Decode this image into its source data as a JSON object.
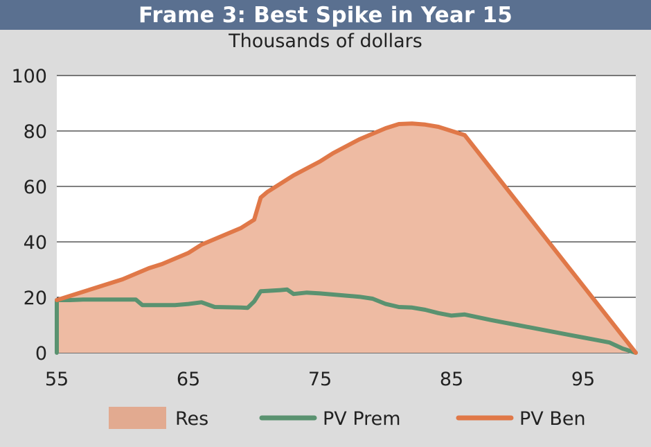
{
  "header": {
    "title": "Frame 3: Best Spike in Year 15",
    "subtitle": "Thousands of dollars"
  },
  "colors": {
    "title_bar": "#5a7090",
    "background": "#dcdcdc",
    "plot_bg": "#ffffff",
    "res_fill": "#eebba3",
    "res_legend": "#e2aa90",
    "pv_prem": "#5a9270",
    "pv_ben": "#e07848"
  },
  "chart_data": {
    "type": "area",
    "title": "Frame 3: Best Spike in Year 15",
    "subtitle": "Thousands of dollars",
    "xlabel": "",
    "ylabel": "",
    "xlim": [
      55,
      99
    ],
    "ylim": [
      0,
      100
    ],
    "x_ticks": [
      55,
      65,
      75,
      85,
      95
    ],
    "y_ticks": [
      0,
      20,
      40,
      60,
      80,
      100
    ],
    "grid": "horizontal",
    "legend_position": "bottom",
    "series": [
      {
        "name": "Res",
        "kind": "area",
        "description_of_bounds": "PV Ben",
        "points": [
          [
            55,
            19
          ],
          [
            56,
            20.5
          ],
          [
            57,
            22
          ],
          [
            58,
            23.5
          ],
          [
            59,
            25
          ],
          [
            60,
            26.5
          ],
          [
            61,
            28.5
          ],
          [
            62,
            30.5
          ],
          [
            63,
            32
          ],
          [
            64,
            34
          ],
          [
            65,
            36
          ],
          [
            66,
            39
          ],
          [
            67,
            41
          ],
          [
            68,
            43
          ],
          [
            69,
            45
          ],
          [
            70,
            48
          ],
          [
            70.5,
            56
          ],
          [
            71,
            58
          ],
          [
            72,
            61
          ],
          [
            73,
            64
          ],
          [
            74,
            66.5
          ],
          [
            75,
            69
          ],
          [
            76,
            72
          ],
          [
            77,
            74.5
          ],
          [
            78,
            77
          ],
          [
            79,
            79
          ],
          [
            80,
            81
          ],
          [
            81,
            82.5
          ],
          [
            82,
            82.7
          ],
          [
            83,
            82.3
          ],
          [
            84,
            81.5
          ],
          [
            85,
            80
          ],
          [
            86,
            78.5
          ],
          [
            99,
            0
          ]
        ]
      },
      {
        "name": "PV Prem",
        "kind": "line",
        "points": [
          [
            55,
            0
          ],
          [
            55,
            19
          ],
          [
            56,
            19
          ],
          [
            57,
            19.2
          ],
          [
            58,
            19.2
          ],
          [
            59,
            19.2
          ],
          [
            60,
            19.2
          ],
          [
            61,
            19.2
          ],
          [
            61.5,
            17.2
          ],
          [
            62,
            17.2
          ],
          [
            63,
            17.2
          ],
          [
            64,
            17.2
          ],
          [
            65,
            17.6
          ],
          [
            66,
            18.2
          ],
          [
            67,
            16.5
          ],
          [
            68,
            16.4
          ],
          [
            69,
            16.3
          ],
          [
            69.5,
            16.2
          ],
          [
            70,
            18.5
          ],
          [
            70.5,
            22.2
          ],
          [
            71,
            22.3
          ],
          [
            72,
            22.6
          ],
          [
            72.5,
            22.8
          ],
          [
            73,
            21.2
          ],
          [
            74,
            21.7
          ],
          [
            75,
            21.4
          ],
          [
            76,
            21
          ],
          [
            77,
            20.6
          ],
          [
            78,
            20.2
          ],
          [
            79,
            19.5
          ],
          [
            80,
            17.6
          ],
          [
            81,
            16.5
          ],
          [
            82,
            16.3
          ],
          [
            83,
            15.5
          ],
          [
            84,
            14.3
          ],
          [
            85,
            13.4
          ],
          [
            86,
            13.8
          ],
          [
            87,
            12.8
          ],
          [
            88,
            11.8
          ],
          [
            89,
            10.9
          ],
          [
            90,
            10
          ],
          [
            91,
            9.1
          ],
          [
            92,
            8.2
          ],
          [
            93,
            7.3
          ],
          [
            94,
            6.4
          ],
          [
            95,
            5.5
          ],
          [
            96,
            4.6
          ],
          [
            97,
            3.7
          ],
          [
            98,
            1.5
          ],
          [
            99,
            0
          ]
        ]
      },
      {
        "name": "PV Ben",
        "kind": "line",
        "points": [
          [
            55,
            19
          ],
          [
            56,
            20.5
          ],
          [
            57,
            22
          ],
          [
            58,
            23.5
          ],
          [
            59,
            25
          ],
          [
            60,
            26.5
          ],
          [
            61,
            28.5
          ],
          [
            62,
            30.5
          ],
          [
            63,
            32
          ],
          [
            64,
            34
          ],
          [
            65,
            36
          ],
          [
            66,
            39
          ],
          [
            67,
            41
          ],
          [
            68,
            43
          ],
          [
            69,
            45
          ],
          [
            70,
            48
          ],
          [
            70.5,
            56
          ],
          [
            71,
            58
          ],
          [
            72,
            61
          ],
          [
            73,
            64
          ],
          [
            74,
            66.5
          ],
          [
            75,
            69
          ],
          [
            76,
            72
          ],
          [
            77,
            74.5
          ],
          [
            78,
            77
          ],
          [
            79,
            79
          ],
          [
            80,
            81
          ],
          [
            81,
            82.5
          ],
          [
            82,
            82.7
          ],
          [
            83,
            82.3
          ],
          [
            84,
            81.5
          ],
          [
            85,
            80
          ],
          [
            86,
            78.5
          ],
          [
            99,
            0
          ]
        ]
      }
    ],
    "legend": [
      "Res",
      "PV Prem",
      "PV Ben"
    ]
  }
}
